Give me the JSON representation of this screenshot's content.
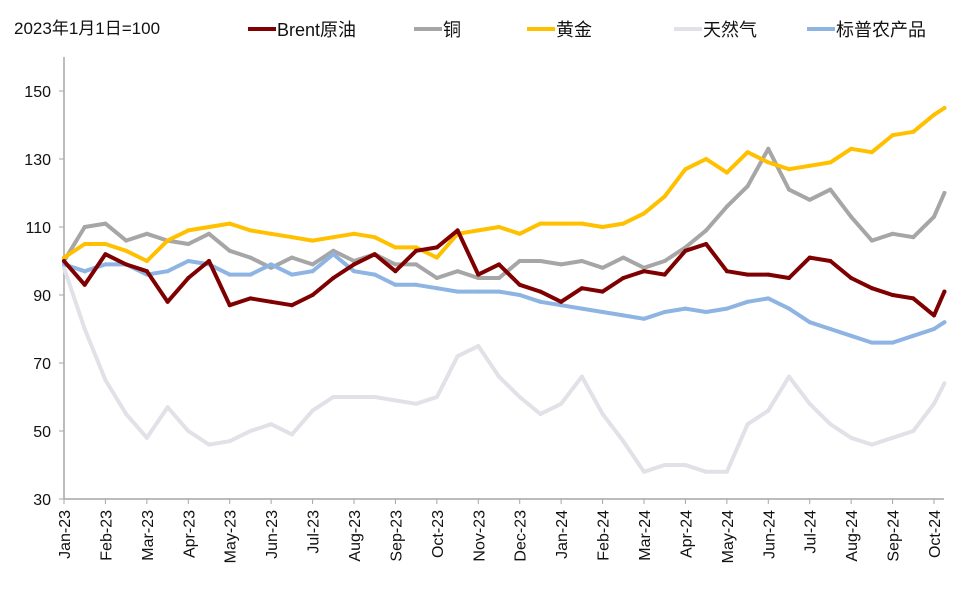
{
  "chart_data": {
    "type": "line",
    "title": "",
    "unit_note": "2023年1月1日=100",
    "xlabel": "",
    "ylabel": "",
    "ylim": [
      30,
      160
    ],
    "yticks": [
      30,
      50,
      70,
      90,
      110,
      130,
      150
    ],
    "grid": false,
    "legend_position": "top",
    "x_tick_labels": [
      "Jan-23",
      "Feb-23",
      "Mar-23",
      "Apr-23",
      "May-23",
      "Jun-23",
      "Jul-23",
      "Aug-23",
      "Sep-23",
      "Oct-23",
      "Nov-23",
      "Dec-23",
      "Jan-24",
      "Feb-24",
      "Mar-24",
      "Apr-24",
      "May-24",
      "Jun-24",
      "Jul-24",
      "Aug-24",
      "Sep-24",
      "Oct-24"
    ],
    "x_month_index_note": "x values are month offsets from Jan-23 (0 = Jan-23, 21 = Oct-24)",
    "x": [
      0,
      0.5,
      1,
      1.5,
      2,
      2.5,
      3,
      3.5,
      4,
      4.5,
      5,
      5.5,
      6,
      6.5,
      7,
      7.5,
      8,
      8.5,
      9,
      9.5,
      10,
      10.5,
      11,
      11.5,
      12,
      12.5,
      13,
      13.5,
      14,
      14.5,
      15,
      15.5,
      16,
      16.5,
      17,
      17.5,
      18,
      18.5,
      19,
      19.5,
      20,
      20.5,
      21,
      21.25
    ],
    "series": [
      {
        "name": "Brent原油",
        "color": "#7f0000",
        "values": [
          100,
          93,
          102,
          99,
          97,
          88,
          95,
          100,
          87,
          89,
          88,
          87,
          90,
          95,
          99,
          102,
          97,
          103,
          104,
          109,
          96,
          99,
          93,
          91,
          88,
          92,
          91,
          95,
          97,
          96,
          103,
          105,
          97,
          96,
          96,
          95,
          101,
          100,
          95,
          92,
          90,
          89,
          84,
          91
        ]
      },
      {
        "name": "铜",
        "color": "#a6a6a6",
        "values": [
          100,
          110,
          111,
          106,
          108,
          106,
          105,
          108,
          103,
          101,
          98,
          101,
          99,
          103,
          100,
          102,
          99,
          99,
          95,
          97,
          95,
          95,
          100,
          100,
          99,
          100,
          98,
          101,
          98,
          100,
          104,
          109,
          116,
          122,
          133,
          121,
          118,
          121,
          113,
          106,
          108,
          107,
          113,
          120
        ]
      },
      {
        "name": "黄金",
        "color": "#ffc000",
        "values": [
          101,
          105,
          105,
          103,
          100,
          106,
          109,
          110,
          111,
          109,
          108,
          107,
          106,
          107,
          108,
          107,
          104,
          104,
          101,
          108,
          109,
          110,
          108,
          111,
          111,
          111,
          110,
          111,
          114,
          119,
          127,
          130,
          126,
          132,
          129,
          127,
          128,
          129,
          133,
          132,
          137,
          138,
          143,
          145
        ]
      },
      {
        "name": "天然气",
        "color": "#e3e0e8",
        "values": [
          98,
          80,
          65,
          55,
          48,
          57,
          50,
          46,
          47,
          50,
          52,
          49,
          56,
          60,
          60,
          60,
          59,
          58,
          60,
          72,
          75,
          66,
          60,
          55,
          58,
          66,
          55,
          47,
          38,
          40,
          40,
          38,
          38,
          52,
          56,
          66,
          58,
          52,
          48,
          46,
          48,
          50,
          58,
          64
        ]
      },
      {
        "name": "标普农产品",
        "color": "#8eb4e3",
        "values": [
          99,
          97,
          99,
          99,
          96,
          97,
          100,
          99,
          96,
          96,
          99,
          96,
          97,
          102,
          97,
          96,
          93,
          93,
          92,
          91,
          91,
          91,
          90,
          88,
          87,
          86,
          85,
          84,
          83,
          85,
          86,
          85,
          86,
          88,
          89,
          86,
          82,
          80,
          78,
          76,
          76,
          78,
          80,
          82
        ]
      }
    ]
  }
}
